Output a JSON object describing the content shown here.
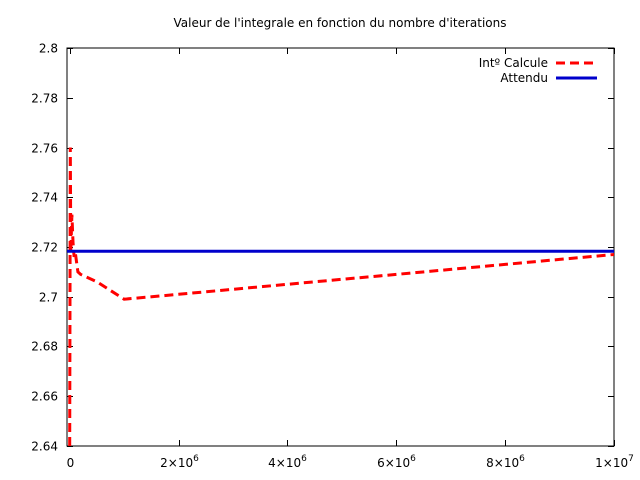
{
  "chart_data": {
    "type": "line",
    "title": "Valeur de l'integrale en fonction du nombre d'iterations",
    "xlabel": "",
    "ylabel": "",
    "xlim": [
      -50000,
      10000000
    ],
    "ylim": [
      2.64,
      2.8
    ],
    "grid": false,
    "legend_position": "top-right",
    "x_ticks": [
      {
        "value": 0,
        "label": "0"
      },
      {
        "value": 2000000,
        "label": "2×10",
        "exp": "6"
      },
      {
        "value": 4000000,
        "label": "4×10",
        "exp": "6"
      },
      {
        "value": 6000000,
        "label": "6×10",
        "exp": "6"
      },
      {
        "value": 8000000,
        "label": "8×10",
        "exp": "6"
      },
      {
        "value": 10000000,
        "label": "1×10",
        "exp": "7"
      }
    ],
    "y_ticks": [
      {
        "value": 2.64,
        "label": "2.64"
      },
      {
        "value": 2.66,
        "label": "2.66"
      },
      {
        "value": 2.68,
        "label": "2.68"
      },
      {
        "value": 2.7,
        "label": "2.7"
      },
      {
        "value": 2.72,
        "label": "2.72"
      },
      {
        "value": 2.74,
        "label": "2.74"
      },
      {
        "value": 2.76,
        "label": "2.76"
      },
      {
        "value": 2.78,
        "label": "2.78"
      },
      {
        "value": 2.8,
        "label": "2.8"
      }
    ],
    "series": [
      {
        "name": "Intº Calcule",
        "color": "#ff0000",
        "style": "dashed",
        "x": [
          0,
          10000,
          20000,
          40000,
          60000,
          80000,
          100000,
          150000,
          200000,
          300000,
          500000,
          1000000,
          2000000,
          3000000,
          4000000,
          5000000,
          6000000,
          7000000,
          8000000,
          9000000,
          10000000
        ],
        "y": [
          2.64,
          2.76,
          2.718,
          2.733,
          2.722,
          2.716,
          2.718,
          2.71,
          2.709,
          2.708,
          2.706,
          2.699,
          2.701,
          2.703,
          2.705,
          2.707,
          2.709,
          2.711,
          2.713,
          2.715,
          2.717
        ]
      },
      {
        "name": "Attendu",
        "color": "#0000cc",
        "style": "solid",
        "x": [
          -50000,
          10000000
        ],
        "y": [
          2.71828,
          2.71828
        ]
      }
    ]
  }
}
